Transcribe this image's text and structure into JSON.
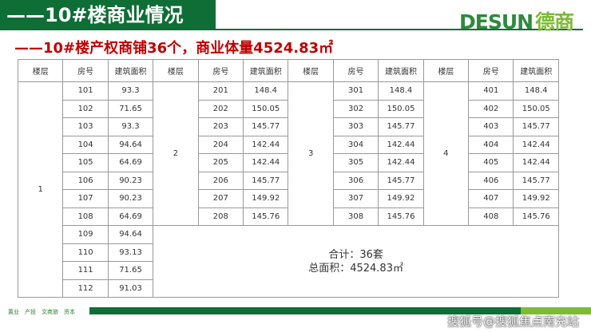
{
  "header": {
    "title": "——10#楼商业情况",
    "logo_en": "DESUN",
    "logo_cn": "德商"
  },
  "subtitle": "——10#楼产权商铺36个，商业体量4524.83㎡",
  "table": {
    "headers": [
      "楼层",
      "房号",
      "建筑面积",
      "楼层",
      "房号",
      "建筑面积",
      "楼层",
      "房号",
      "建筑面积",
      "楼层",
      "房号",
      "建筑面积"
    ],
    "floors": [
      "1",
      "2",
      "3",
      "4"
    ],
    "floor1": [
      [
        "101",
        "93.3"
      ],
      [
        "102",
        "71.65"
      ],
      [
        "103",
        "93.3"
      ],
      [
        "104",
        "94.64"
      ],
      [
        "105",
        "64.69"
      ],
      [
        "106",
        "90.23"
      ],
      [
        "107",
        "90.23"
      ],
      [
        "108",
        "64.69"
      ],
      [
        "109",
        "94.64"
      ],
      [
        "110",
        "93.13"
      ],
      [
        "111",
        "71.65"
      ],
      [
        "112",
        "91.03"
      ]
    ],
    "floor2": [
      [
        "201",
        "148.4"
      ],
      [
        "202",
        "150.05"
      ],
      [
        "203",
        "145.77"
      ],
      [
        "204",
        "142.44"
      ],
      [
        "205",
        "142.44"
      ],
      [
        "206",
        "145.77"
      ],
      [
        "207",
        "149.92"
      ],
      [
        "208",
        "145.76"
      ]
    ],
    "floor3": [
      [
        "301",
        "148.4"
      ],
      [
        "302",
        "150.05"
      ],
      [
        "303",
        "145.77"
      ],
      [
        "304",
        "142.44"
      ],
      [
        "305",
        "142.44"
      ],
      [
        "306",
        "145.77"
      ],
      [
        "307",
        "149.92"
      ],
      [
        "308",
        "145.76"
      ]
    ],
    "floor4": [
      [
        "401",
        "148.4"
      ],
      [
        "402",
        "150.05"
      ],
      [
        "403",
        "145.77"
      ],
      [
        "404",
        "142.44"
      ],
      [
        "405",
        "142.44"
      ],
      [
        "406",
        "145.77"
      ],
      [
        "407",
        "149.92"
      ],
      [
        "408",
        "145.76"
      ]
    ],
    "total_count": "合计：36套",
    "total_area": "总面积：4524.83㎡"
  },
  "footer": {
    "items": [
      "置业",
      "产投",
      "文商旅",
      "资本"
    ],
    "watermark": "搜狐号@搜狐焦点南充站"
  },
  "colors": {
    "brand_green": "#0e6e35",
    "accent_green": "#7dbb35",
    "title_red": "#c00000"
  }
}
